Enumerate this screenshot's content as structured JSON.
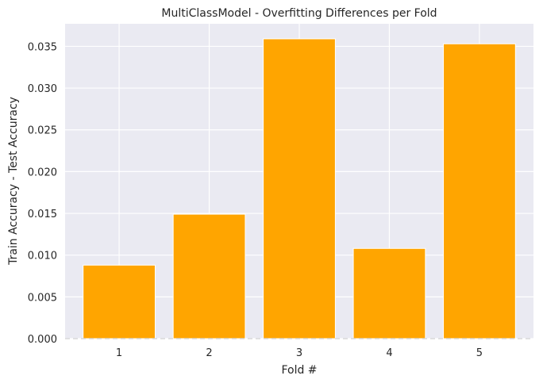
{
  "chart_data": {
    "type": "bar",
    "title": "MultiClassModel - Overfitting Differences per Fold",
    "xlabel": "Fold #",
    "ylabel": "Train Accuracy - Test Accuracy",
    "categories": [
      "1",
      "2",
      "3",
      "4",
      "5"
    ],
    "values": [
      0.0088,
      0.0149,
      0.0359,
      0.0108,
      0.0353
    ],
    "ylim": [
      0,
      0.0377
    ],
    "yticks": [
      "0.000",
      "0.005",
      "0.010",
      "0.015",
      "0.020",
      "0.025",
      "0.030",
      "0.035"
    ],
    "grid": true,
    "baseline": {
      "value": 0,
      "style": "dashed"
    },
    "colors": {
      "bar": "#FFA500",
      "plot_background": "#EAEAF2",
      "grid": "#FFFFFF",
      "baseline": "#D9D9D9"
    }
  }
}
